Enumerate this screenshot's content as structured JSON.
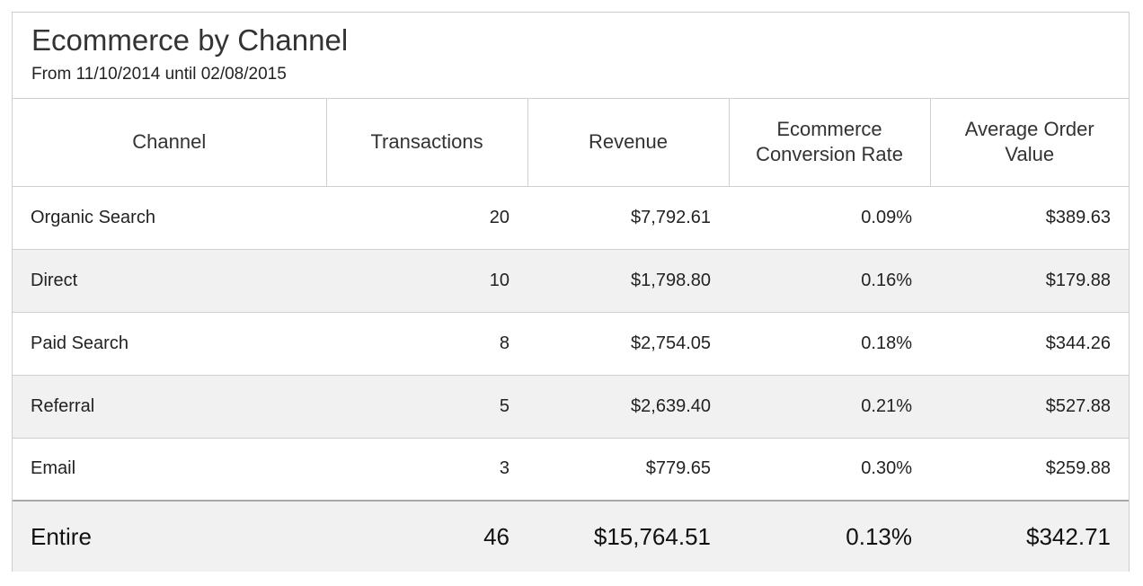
{
  "report": {
    "title": "Ecommerce by Channel",
    "subtitle": "From 11/10/2014 until 02/08/2015"
  },
  "table": {
    "headers": [
      "Channel",
      "Transactions",
      "Revenue",
      "Ecommerce Conversion Rate",
      "Average Order Value"
    ],
    "rows": [
      [
        "Organic Search",
        "20",
        "$7,792.61",
        "0.09%",
        "$389.63"
      ],
      [
        "Direct",
        "10",
        "$1,798.80",
        "0.16%",
        "$179.88"
      ],
      [
        "Paid Search",
        "8",
        "$2,754.05",
        "0.18%",
        "$344.26"
      ],
      [
        "Referral",
        "5",
        "$2,639.40",
        "0.21%",
        "$527.88"
      ],
      [
        "Email",
        "3",
        "$779.65",
        "0.30%",
        "$259.88"
      ]
    ],
    "total": [
      "Entire",
      "46",
      "$15,764.51",
      "0.13%",
      "$342.71"
    ]
  }
}
